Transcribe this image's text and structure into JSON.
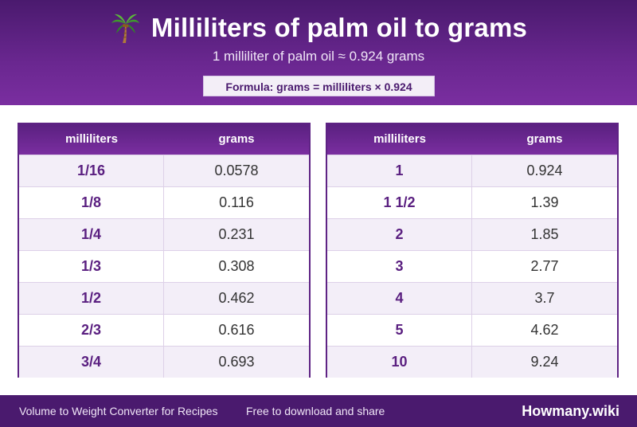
{
  "header": {
    "icon": "palm-tree-icon",
    "title": "Milliliters of palm oil to grams",
    "subtitle": "1 milliliter of palm oil ≈ 0.924 grams",
    "formula": "Formula: grams = milliliters × 0.924"
  },
  "colors": {
    "header_dark": "#4a1a6e",
    "header_light": "#7a2ea0",
    "accent_text": "#5a1f80",
    "row_alt": "#f3eef8"
  },
  "tables": [
    {
      "col_ml": "milliliters",
      "col_g": "grams",
      "rows": [
        {
          "ml": "1/16",
          "g": "0.0578"
        },
        {
          "ml": "1/8",
          "g": "0.116"
        },
        {
          "ml": "1/4",
          "g": "0.231"
        },
        {
          "ml": "1/3",
          "g": "0.308"
        },
        {
          "ml": "1/2",
          "g": "0.462"
        },
        {
          "ml": "2/3",
          "g": "0.616"
        },
        {
          "ml": "3/4",
          "g": "0.693"
        }
      ]
    },
    {
      "col_ml": "milliliters",
      "col_g": "grams",
      "rows": [
        {
          "ml": "1",
          "g": "0.924"
        },
        {
          "ml": "1 1/2",
          "g": "1.39"
        },
        {
          "ml": "2",
          "g": "1.85"
        },
        {
          "ml": "3",
          "g": "2.77"
        },
        {
          "ml": "4",
          "g": "3.7"
        },
        {
          "ml": "5",
          "g": "4.62"
        },
        {
          "ml": "10",
          "g": "9.24"
        }
      ]
    }
  ],
  "footer": {
    "left": "Volume to Weight Converter for Recipes",
    "middle": "Free to download and share",
    "brand": "Howmany.wiki"
  }
}
